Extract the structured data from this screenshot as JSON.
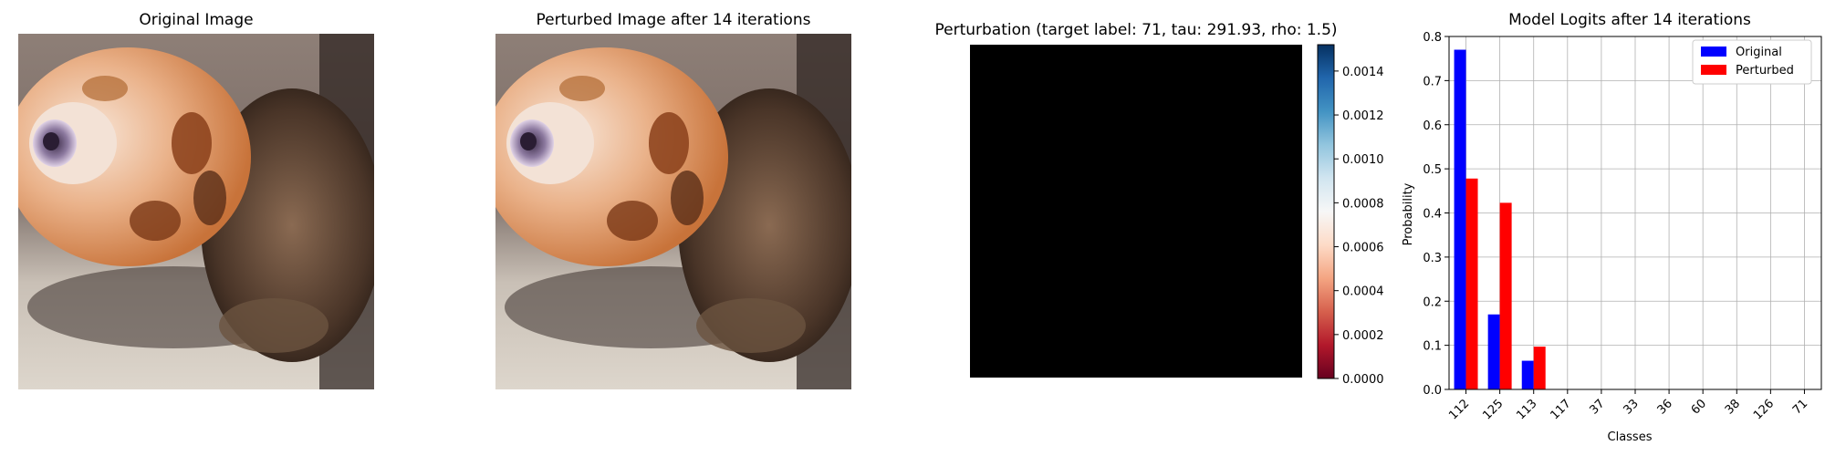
{
  "panels": {
    "original_title": "Original Image",
    "perturbed_title": "Perturbed Image after 14 iterations",
    "perturbation_title": "Perturbation (target label: 71, tau: 291.93, rho: 1.5)",
    "logits_title": "Model Logits after 14 iterations"
  },
  "colorbar": {
    "colormap": "RdBu",
    "ticks": [
      "0.0000",
      "0.0002",
      "0.0004",
      "0.0006",
      "0.0008",
      "0.0010",
      "0.0012",
      "0.0014"
    ],
    "tick_values": [
      0,
      0.0002,
      0.0004,
      0.0006,
      0.0008,
      0.001,
      0.0012,
      0.0014
    ],
    "range": [
      0,
      0.00152
    ]
  },
  "chart_data": {
    "type": "bar",
    "title": "Model Logits after 14 iterations",
    "xlabel": "Classes",
    "ylabel": "Probability",
    "categories": [
      "112",
      "125",
      "113",
      "117",
      "37",
      "33",
      "36",
      "60",
      "38",
      "126",
      "71"
    ],
    "series": [
      {
        "name": "Original",
        "color": "#0000ff",
        "values": [
          0.77,
          0.17,
          0.065,
          0,
          0,
          0,
          0,
          0,
          0,
          0,
          0
        ]
      },
      {
        "name": "Perturbed",
        "color": "#ff0000",
        "values": [
          0.478,
          0.423,
          0.097,
          0,
          0,
          0,
          0,
          0,
          0,
          0,
          0
        ]
      }
    ],
    "ylim": [
      0,
      0.8
    ],
    "yticks": [
      "0.0",
      "0.1",
      "0.2",
      "0.3",
      "0.4",
      "0.5",
      "0.6",
      "0.7",
      "0.8"
    ],
    "grid": true,
    "legend": "top-right"
  }
}
